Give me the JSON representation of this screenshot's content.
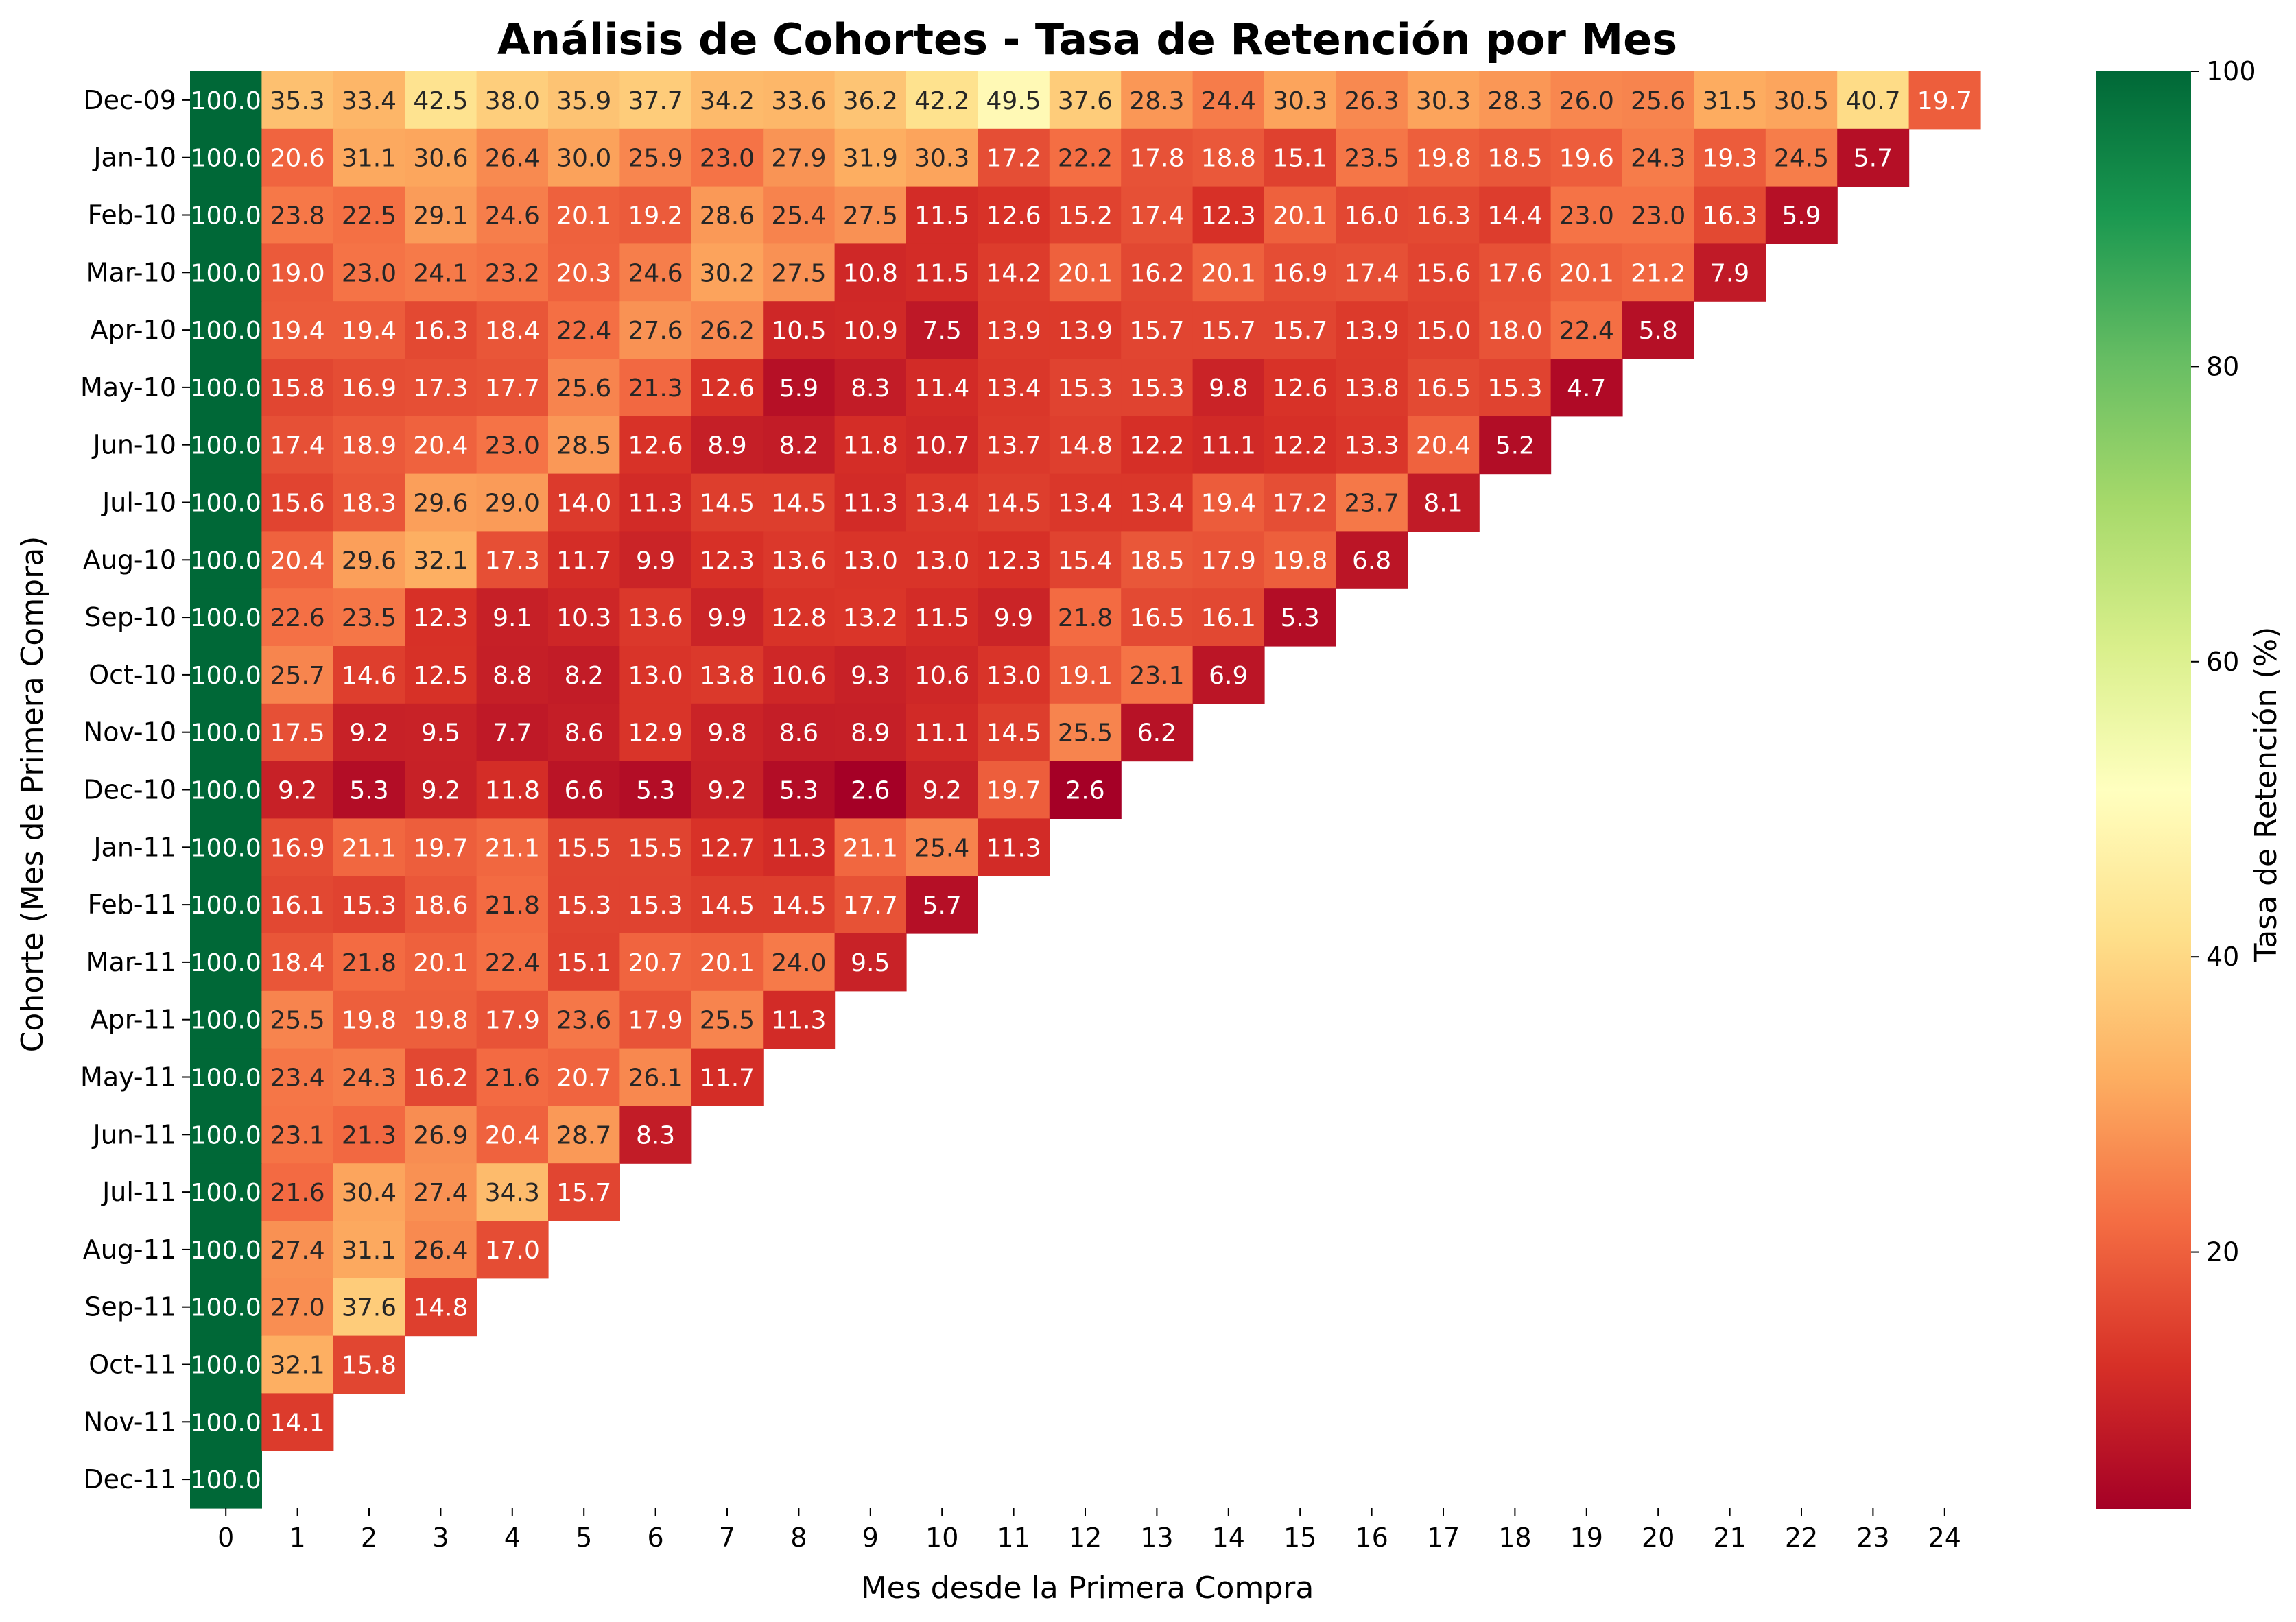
{
  "chart_data": {
    "type": "heatmap",
    "title": "Análisis de Cohortes - Tasa de Retención por Mes",
    "xlabel": "Mes desde la Primera Compra",
    "ylabel": "Cohorte (Mes de Primera Compra)",
    "colorbar_label": "Tasa de Retención (%)",
    "colorbar_ticks": [
      20,
      40,
      60,
      80,
      100
    ],
    "colormap": "RdYlGn",
    "value_range": [
      2.6,
      100
    ],
    "grid": false,
    "x_categories": [
      "0",
      "1",
      "2",
      "3",
      "4",
      "5",
      "6",
      "7",
      "8",
      "9",
      "10",
      "11",
      "12",
      "13",
      "14",
      "15",
      "16",
      "17",
      "18",
      "19",
      "20",
      "21",
      "22",
      "23",
      "24"
    ],
    "y_categories": [
      "Dec-09",
      "Jan-10",
      "Feb-10",
      "Mar-10",
      "Apr-10",
      "May-10",
      "Jun-10",
      "Jul-10",
      "Aug-10",
      "Sep-10",
      "Oct-10",
      "Nov-10",
      "Dec-10",
      "Jan-11",
      "Feb-11",
      "Mar-11",
      "Apr-11",
      "May-11",
      "Jun-11",
      "Jul-11",
      "Aug-11",
      "Sep-11",
      "Oct-11",
      "Nov-11",
      "Dec-11"
    ],
    "values": [
      [
        100.0,
        35.3,
        33.4,
        42.5,
        38.0,
        35.9,
        37.7,
        34.2,
        33.6,
        36.2,
        42.2,
        49.5,
        37.6,
        28.3,
        24.4,
        30.3,
        26.3,
        30.3,
        28.3,
        26.0,
        25.6,
        31.5,
        30.5,
        40.7,
        19.7
      ],
      [
        100.0,
        20.6,
        31.1,
        30.6,
        26.4,
        30.0,
        25.9,
        23.0,
        27.9,
        31.9,
        30.3,
        17.2,
        22.2,
        17.8,
        18.8,
        15.1,
        23.5,
        19.8,
        18.5,
        19.6,
        24.3,
        19.3,
        24.5,
        5.7
      ],
      [
        100.0,
        23.8,
        22.5,
        29.1,
        24.6,
        20.1,
        19.2,
        28.6,
        25.4,
        27.5,
        11.5,
        12.6,
        15.2,
        17.4,
        12.3,
        20.1,
        16.0,
        16.3,
        14.4,
        23.0,
        23.0,
        16.3,
        5.9
      ],
      [
        100.0,
        19.0,
        23.0,
        24.1,
        23.2,
        20.3,
        24.6,
        30.2,
        27.5,
        10.8,
        11.5,
        14.2,
        20.1,
        16.2,
        20.1,
        16.9,
        17.4,
        15.6,
        17.6,
        20.1,
        21.2,
        7.9
      ],
      [
        100.0,
        19.4,
        19.4,
        16.3,
        18.4,
        22.4,
        27.6,
        26.2,
        10.5,
        10.9,
        7.5,
        13.9,
        13.9,
        15.7,
        15.7,
        15.7,
        13.9,
        15.0,
        18.0,
        22.4,
        5.8
      ],
      [
        100.0,
        15.8,
        16.9,
        17.3,
        17.7,
        25.6,
        21.3,
        12.6,
        5.9,
        8.3,
        11.4,
        13.4,
        15.3,
        15.3,
        9.8,
        12.6,
        13.8,
        16.5,
        15.3,
        4.7
      ],
      [
        100.0,
        17.4,
        18.9,
        20.4,
        23.0,
        28.5,
        12.6,
        8.9,
        8.2,
        11.8,
        10.7,
        13.7,
        14.8,
        12.2,
        11.1,
        12.2,
        13.3,
        20.4,
        5.2
      ],
      [
        100.0,
        15.6,
        18.3,
        29.6,
        29.0,
        14.0,
        11.3,
        14.5,
        14.5,
        11.3,
        13.4,
        14.5,
        13.4,
        13.4,
        19.4,
        17.2,
        23.7,
        8.1
      ],
      [
        100.0,
        20.4,
        29.6,
        32.1,
        17.3,
        11.7,
        9.9,
        12.3,
        13.6,
        13.0,
        13.0,
        12.3,
        15.4,
        18.5,
        17.9,
        19.8,
        6.8
      ],
      [
        100.0,
        22.6,
        23.5,
        12.3,
        9.1,
        10.3,
        13.6,
        9.9,
        12.8,
        13.2,
        11.5,
        9.9,
        21.8,
        16.5,
        16.1,
        5.3
      ],
      [
        100.0,
        25.7,
        14.6,
        12.5,
        8.8,
        8.2,
        13.0,
        13.8,
        10.6,
        9.3,
        10.6,
        13.0,
        19.1,
        23.1,
        6.9
      ],
      [
        100.0,
        17.5,
        9.2,
        9.5,
        7.7,
        8.6,
        12.9,
        9.8,
        8.6,
        8.9,
        11.1,
        14.5,
        25.5,
        6.2
      ],
      [
        100.0,
        9.2,
        5.3,
        9.2,
        11.8,
        6.6,
        5.3,
        9.2,
        5.3,
        2.6,
        9.2,
        19.7,
        2.6
      ],
      [
        100.0,
        16.9,
        21.1,
        19.7,
        21.1,
        15.5,
        15.5,
        12.7,
        11.3,
        21.1,
        25.4,
        11.3
      ],
      [
        100.0,
        16.1,
        15.3,
        18.6,
        21.8,
        15.3,
        15.3,
        14.5,
        14.5,
        17.7,
        5.7
      ],
      [
        100.0,
        18.4,
        21.8,
        20.1,
        22.4,
        15.1,
        20.7,
        20.1,
        24.0,
        9.5
      ],
      [
        100.0,
        25.5,
        19.8,
        19.8,
        17.9,
        23.6,
        17.9,
        25.5,
        11.3
      ],
      [
        100.0,
        23.4,
        24.3,
        16.2,
        21.6,
        20.7,
        26.1,
        11.7
      ],
      [
        100.0,
        23.1,
        21.3,
        26.9,
        20.4,
        28.7,
        8.3
      ],
      [
        100.0,
        21.6,
        30.4,
        27.4,
        34.3,
        15.7
      ],
      [
        100.0,
        27.4,
        31.1,
        26.4,
        17.0
      ],
      [
        100.0,
        27.0,
        37.6,
        14.8
      ],
      [
        100.0,
        32.1,
        15.8
      ],
      [
        100.0,
        14.1
      ],
      [
        100.0
      ]
    ]
  }
}
